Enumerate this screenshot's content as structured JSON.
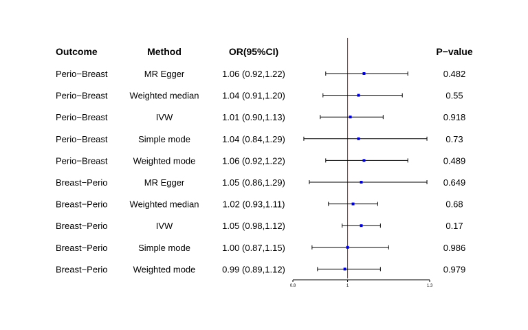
{
  "headers": {
    "outcome": "Outcome",
    "method": "Method",
    "or_ci": "OR(95%CI)",
    "p_value": "P−value"
  },
  "colors": {
    "point": "#0000cc",
    "reference_line": "#dd0000",
    "ci_line": "#000000"
  },
  "chart_data": {
    "type": "forest",
    "reference_value": 1,
    "xlim": [
      0.8,
      1.3
    ],
    "x_ticks": [
      0.8,
      1,
      1.3
    ],
    "x_tick_labels": [
      "0.8",
      "1",
      "1.3"
    ],
    "grid": false,
    "rows": [
      {
        "outcome": "Perio−Breast",
        "method": "MR Egger",
        "or": 1.06,
        "lower": 0.92,
        "upper": 1.22,
        "or_text": "1.06 (0.92,1.22)",
        "p_value": "0.482"
      },
      {
        "outcome": "Perio−Breast",
        "method": "Weighted median",
        "or": 1.04,
        "lower": 0.91,
        "upper": 1.2,
        "or_text": "1.04 (0.91,1.20)",
        "p_value": "0.55"
      },
      {
        "outcome": "Perio−Breast",
        "method": "IVW",
        "or": 1.01,
        "lower": 0.9,
        "upper": 1.13,
        "or_text": "1.01 (0.90,1.13)",
        "p_value": "0.918"
      },
      {
        "outcome": "Perio−Breast",
        "method": "Simple mode",
        "or": 1.04,
        "lower": 0.84,
        "upper": 1.29,
        "or_text": "1.04 (0.84,1.29)",
        "p_value": "0.73"
      },
      {
        "outcome": "Perio−Breast",
        "method": "Weighted mode",
        "or": 1.06,
        "lower": 0.92,
        "upper": 1.22,
        "or_text": "1.06 (0.92,1.22)",
        "p_value": "0.489"
      },
      {
        "outcome": "Breast−Perio",
        "method": "MR Egger",
        "or": 1.05,
        "lower": 0.86,
        "upper": 1.29,
        "or_text": "1.05 (0.86,1.29)",
        "p_value": "0.649"
      },
      {
        "outcome": "Breast−Perio",
        "method": "Weighted median",
        "or": 1.02,
        "lower": 0.93,
        "upper": 1.11,
        "or_text": "1.02 (0.93,1.11)",
        "p_value": "0.68"
      },
      {
        "outcome": "Breast−Perio",
        "method": "IVW",
        "or": 1.05,
        "lower": 0.98,
        "upper": 1.12,
        "or_text": "1.05 (0.98,1.12)",
        "p_value": "0.17"
      },
      {
        "outcome": "Breast−Perio",
        "method": "Simple mode",
        "or": 1.0,
        "lower": 0.87,
        "upper": 1.15,
        "or_text": "1.00 (0.87,1.15)",
        "p_value": "0.986"
      },
      {
        "outcome": "Breast−Perio",
        "method": "Weighted mode",
        "or": 0.99,
        "lower": 0.89,
        "upper": 1.12,
        "or_text": "0.99 (0.89,1.12)",
        "p_value": "0.979"
      }
    ]
  }
}
